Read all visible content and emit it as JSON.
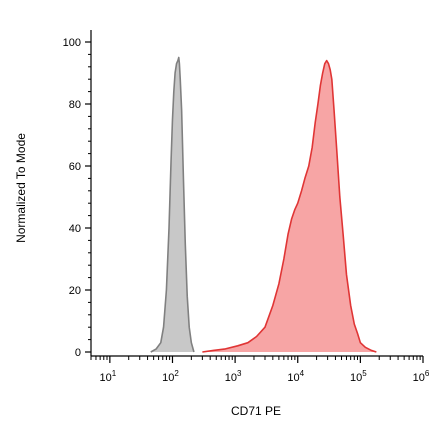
{
  "chart_data": {
    "type": "area",
    "title": "",
    "xlabel": "CD71 PE",
    "ylabel": "Normalized To Mode",
    "x_scale": "log",
    "xlim": [
      5,
      1000000
    ],
    "ylim": [
      0,
      100
    ],
    "x_ticks": [
      {
        "value": 10,
        "base": "10",
        "exp": "1"
      },
      {
        "value": 100,
        "base": "10",
        "exp": "2"
      },
      {
        "value": 1000,
        "base": "10",
        "exp": "3"
      },
      {
        "value": 10000,
        "base": "10",
        "exp": "4"
      },
      {
        "value": 100000,
        "base": "10",
        "exp": "5"
      },
      {
        "value": 1000000,
        "base": "10",
        "exp": "6"
      }
    ],
    "y_ticks": [
      0,
      20,
      40,
      60,
      80,
      100
    ],
    "grid": false,
    "legend": "none",
    "series": [
      {
        "color": "#808080",
        "fill": "#c8c8c8",
        "points": [
          [
            45,
            0
          ],
          [
            55,
            1
          ],
          [
            65,
            3
          ],
          [
            72,
            8
          ],
          [
            80,
            20
          ],
          [
            88,
            40
          ],
          [
            95,
            62
          ],
          [
            100,
            75
          ],
          [
            105,
            84
          ],
          [
            110,
            90
          ],
          [
            116,
            93
          ],
          [
            122,
            94
          ],
          [
            126,
            95
          ],
          [
            129,
            93
          ],
          [
            133,
            88
          ],
          [
            140,
            78
          ],
          [
            150,
            55
          ],
          [
            160,
            35
          ],
          [
            172,
            18
          ],
          [
            185,
            8
          ],
          [
            200,
            3
          ],
          [
            220,
            0
          ]
        ]
      },
      {
        "color": "#e03535",
        "fill": "#f7a5a5",
        "points": [
          [
            300,
            0
          ],
          [
            450,
            0.5
          ],
          [
            700,
            1
          ],
          [
            1100,
            2
          ],
          [
            1600,
            3
          ],
          [
            2200,
            5
          ],
          [
            3000,
            8
          ],
          [
            4000,
            15
          ],
          [
            5000,
            22
          ],
          [
            6000,
            30
          ],
          [
            7000,
            38
          ],
          [
            8000,
            43
          ],
          [
            9000,
            46
          ],
          [
            10000,
            48
          ],
          [
            11500,
            52
          ],
          [
            13000,
            56
          ],
          [
            15000,
            60
          ],
          [
            17000,
            66
          ],
          [
            19000,
            74
          ],
          [
            21000,
            80
          ],
          [
            23000,
            86
          ],
          [
            25000,
            90
          ],
          [
            27000,
            93
          ],
          [
            29000,
            94
          ],
          [
            31000,
            93
          ],
          [
            33000,
            91
          ],
          [
            35000,
            88
          ],
          [
            38000,
            78
          ],
          [
            42000,
            65
          ],
          [
            47000,
            50
          ],
          [
            53000,
            38
          ],
          [
            60000,
            25
          ],
          [
            70000,
            15
          ],
          [
            80000,
            9
          ],
          [
            90000,
            6
          ],
          [
            100000,
            3
          ],
          [
            120000,
            1.5
          ],
          [
            150000,
            0.5
          ],
          [
            180000,
            0
          ]
        ]
      }
    ]
  }
}
